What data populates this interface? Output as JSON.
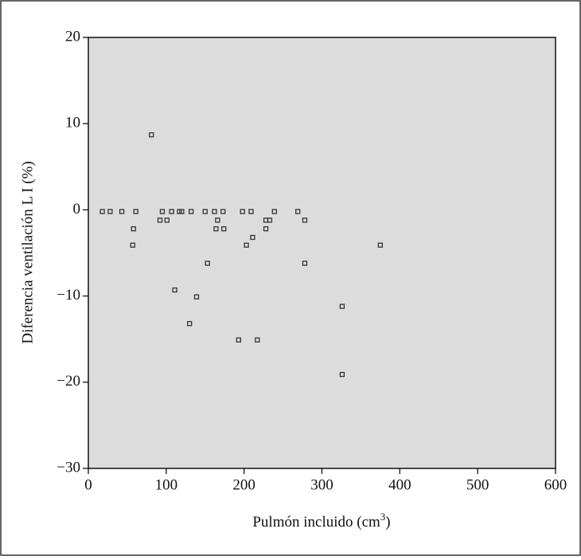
{
  "chart_data": {
    "type": "scatter",
    "x_label": [
      "Pulmón incluido (cm",
      "3",
      ")"
    ],
    "y_label": "Diferencia ventilación  L I (%)",
    "xlim": [
      0,
      600
    ],
    "ylim": [
      -30,
      20
    ],
    "xticks": [
      0,
      100,
      200,
      300,
      400,
      500,
      600
    ],
    "yticks": [
      {
        "value": -30,
        "label": "−30"
      },
      {
        "value": -20,
        "label": "−20"
      },
      {
        "value": -10,
        "label": "−10"
      },
      0,
      10,
      20
    ],
    "color": "#333333",
    "background": "#dcdcdc",
    "grid": false,
    "x": [
      18,
      28,
      43,
      58,
      57,
      61,
      81,
      92,
      95,
      101,
      107,
      111,
      117,
      120,
      130,
      132,
      139,
      150,
      153,
      162,
      164,
      166,
      173,
      174,
      193,
      198,
      203,
      209,
      211,
      217,
      228,
      228,
      233,
      239,
      269,
      278,
      278,
      326,
      326,
      375
    ],
    "y": [
      -0.2,
      -0.2,
      -0.2,
      -2.2,
      -4.1,
      -0.2,
      8.7,
      -1.2,
      -0.2,
      -1.2,
      -0.2,
      -9.3,
      -0.2,
      -0.2,
      -13.2,
      -0.2,
      -10.1,
      -0.2,
      -6.2,
      -0.2,
      -2.2,
      -1.2,
      -0.2,
      -2.2,
      -15.1,
      -0.2,
      -4.1,
      -0.2,
      -3.2,
      -15.1,
      -1.2,
      -2.2,
      -1.2,
      -0.2,
      -0.2,
      -1.2,
      -6.2,
      -11.2,
      -19.1,
      -4.1
    ]
  }
}
